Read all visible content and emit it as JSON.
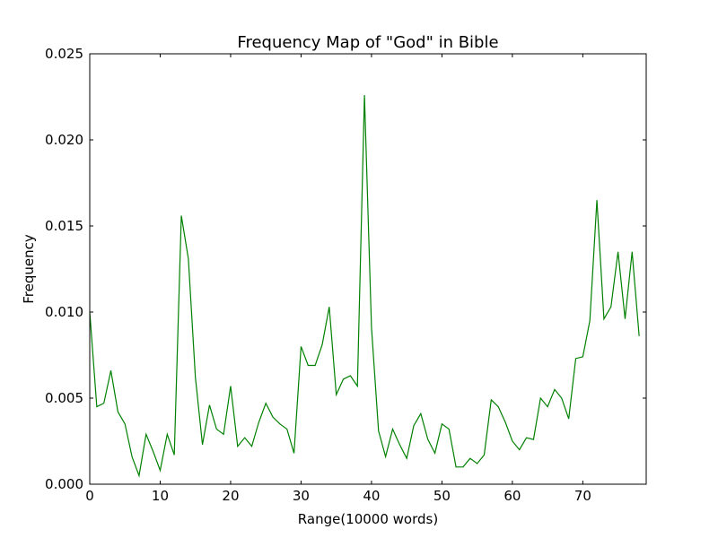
{
  "chart_data": {
    "type": "line",
    "title": "Frequency Map of \"God\" in Bible",
    "xlabel": "Range(10000 words)",
    "ylabel": "Frequency",
    "xlim": [
      0,
      79
    ],
    "ylim": [
      0,
      0.025
    ],
    "xticks": [
      0,
      10,
      20,
      30,
      40,
      50,
      60,
      70
    ],
    "xtick_labels": [
      "0",
      "10",
      "20",
      "30",
      "40",
      "50",
      "60",
      "70"
    ],
    "yticks": [
      0,
      0.005,
      0.01,
      0.015,
      0.02,
      0.025
    ],
    "ytick_labels": [
      "0.000",
      "0.005",
      "0.010",
      "0.015",
      "0.020",
      "0.025"
    ],
    "grid": false,
    "legend": "none",
    "series": [
      {
        "color": "#008000",
        "x": [
          0,
          1,
          2,
          3,
          4,
          5,
          6,
          7,
          8,
          9,
          10,
          11,
          12,
          13,
          14,
          15,
          16,
          17,
          18,
          19,
          20,
          21,
          22,
          23,
          24,
          25,
          26,
          27,
          28,
          29,
          30,
          31,
          32,
          33,
          34,
          35,
          36,
          37,
          38,
          39,
          40,
          41,
          42,
          43,
          44,
          45,
          46,
          47,
          48,
          49,
          50,
          51,
          52,
          53,
          54,
          55,
          56,
          57,
          58,
          59,
          60,
          61,
          62,
          63,
          64,
          65,
          66,
          67,
          68,
          69,
          70,
          71,
          72,
          73,
          74,
          75,
          76,
          77,
          78
        ],
        "values": [
          0.01,
          0.0045,
          0.0047,
          0.0066,
          0.0042,
          0.0035,
          0.0016,
          0.0005,
          0.0029,
          0.0019,
          0.0008,
          0.0029,
          0.0017,
          0.0156,
          0.0131,
          0.0062,
          0.0023,
          0.0046,
          0.0032,
          0.0029,
          0.0057,
          0.0022,
          0.0027,
          0.0022,
          0.0036,
          0.0047,
          0.0039,
          0.0035,
          0.0032,
          0.0018,
          0.008,
          0.0069,
          0.0069,
          0.0081,
          0.0103,
          0.0052,
          0.0061,
          0.0063,
          0.0057,
          0.0226,
          0.0091,
          0.0031,
          0.0016,
          0.0032,
          0.0023,
          0.0015,
          0.0034,
          0.0041,
          0.0026,
          0.0018,
          0.0035,
          0.0032,
          0.001,
          0.001,
          0.0015,
          0.0012,
          0.0017,
          0.0049,
          0.0045,
          0.0036,
          0.0025,
          0.002,
          0.0027,
          0.0026,
          0.005,
          0.0045,
          0.0055,
          0.005,
          0.0038,
          0.0073,
          0.0074,
          0.0095,
          0.0165,
          0.0096,
          0.0103,
          0.0135,
          0.0096,
          0.0135,
          0.0086
        ]
      }
    ]
  }
}
